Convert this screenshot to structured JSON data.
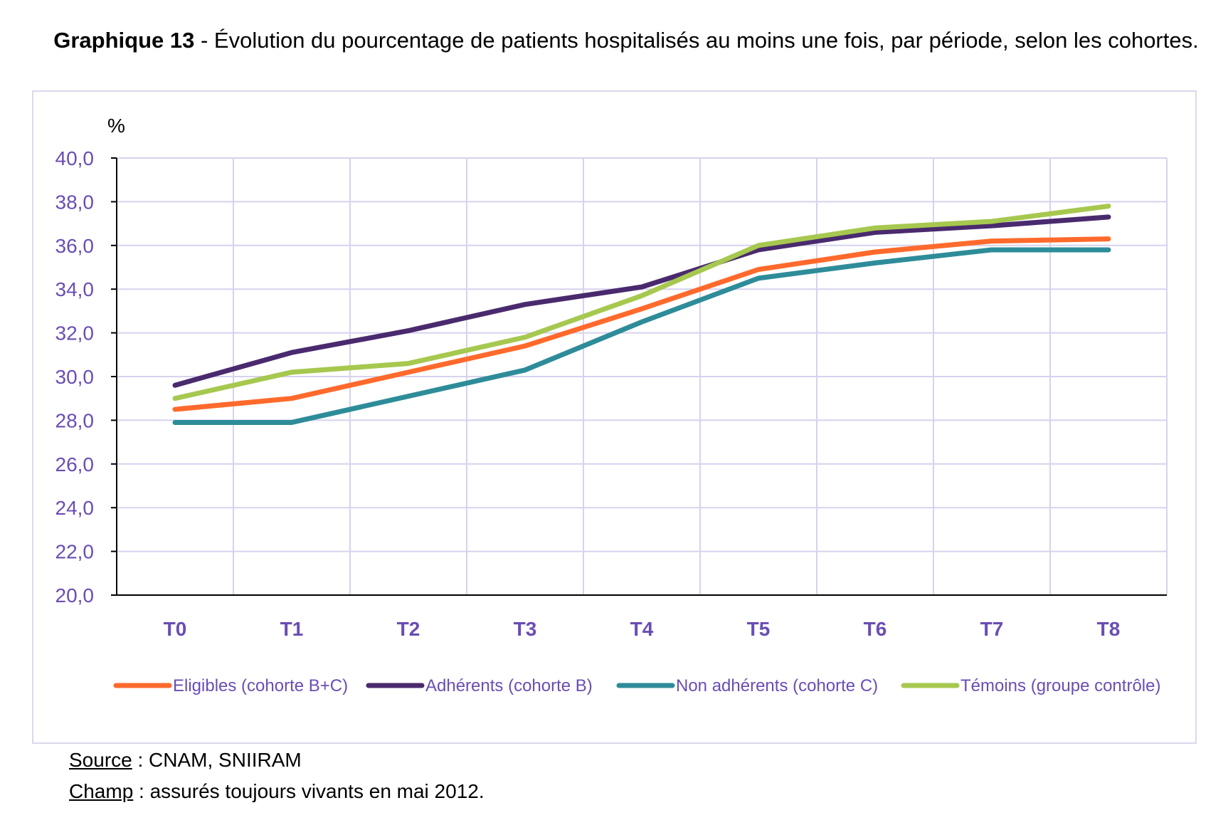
{
  "title": {
    "bold": "Graphique 13",
    "rest": " - Évolution du pourcentage de patients hospitalisés au moins une fois, par période, selon les cohortes."
  },
  "footnotes": {
    "source_label": "Source",
    "source_text": " : CNAM, SNIIRAM",
    "champ_label": "Champ",
    "champ_text": " : assurés toujours vivants en mai 2012."
  },
  "chart_data": {
    "type": "line",
    "ylabel": "%",
    "ylim": [
      20,
      40
    ],
    "ystep": 2,
    "ytick_labels": [
      "20,0",
      "22,0",
      "24,0",
      "26,0",
      "28,0",
      "30,0",
      "32,0",
      "34,0",
      "36,0",
      "38,0",
      "40,0"
    ],
    "categories": [
      "T0",
      "T1",
      "T2",
      "T3",
      "T4",
      "T5",
      "T6",
      "T7",
      "T8"
    ],
    "grid": true,
    "legend_position": "bottom",
    "series": [
      {
        "name": "Eligibles (cohorte B+C)",
        "color": "#ff6a2c",
        "values": [
          28.5,
          29.0,
          30.2,
          31.4,
          33.1,
          34.9,
          35.7,
          36.2,
          36.3
        ]
      },
      {
        "name": "Adhérents (cohorte B)",
        "color": "#4a2a6e",
        "values": [
          29.6,
          31.1,
          32.1,
          33.3,
          34.1,
          35.8,
          36.6,
          36.9,
          37.3
        ]
      },
      {
        "name": "Non adhérents (cohorte C)",
        "color": "#2e8c99",
        "values": [
          27.9,
          27.9,
          29.1,
          30.3,
          32.5,
          34.5,
          35.2,
          35.8,
          35.8
        ]
      },
      {
        "name": "Témoins (groupe contrôle)",
        "color": "#a6c84f",
        "values": [
          29.0,
          30.2,
          30.6,
          31.8,
          33.7,
          36.0,
          36.8,
          37.1,
          37.8
        ]
      }
    ]
  }
}
